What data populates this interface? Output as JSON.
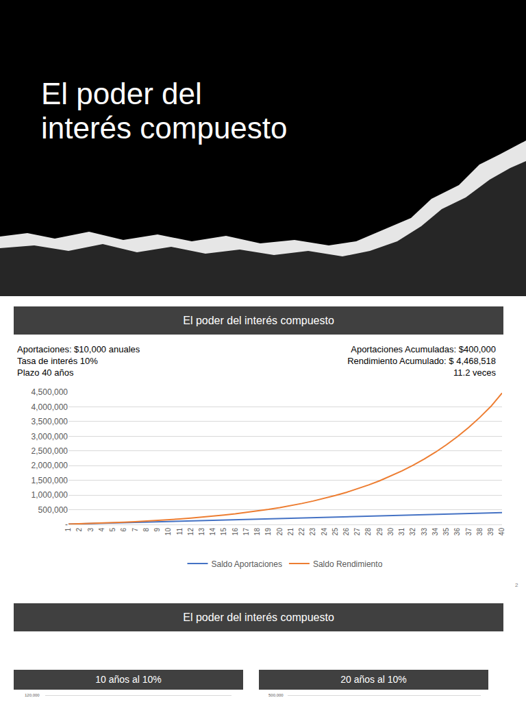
{
  "title_slide": {
    "title": [
      "El poder del",
      "interés compuesto"
    ]
  },
  "slide2": {
    "header": "El poder del interés compuesto",
    "left_text": [
      "Aportaciones: $10,000 anuales",
      "Tasa de interés 10%",
      "Plazo 40 años"
    ],
    "right_text": [
      "Aportaciones Acumuladas: $400,000",
      "Rendimiento Acumulado: $ 4,468,518",
      "11.2 veces"
    ],
    "page_number": "2"
  },
  "chart_data": {
    "type": "line",
    "categories": [
      "1",
      "2",
      "3",
      "4",
      "5",
      "6",
      "7",
      "8",
      "9",
      "10",
      "11",
      "12",
      "13",
      "14",
      "15",
      "16",
      "17",
      "18",
      "19",
      "20",
      "21",
      "22",
      "23",
      "24",
      "25",
      "26",
      "27",
      "28",
      "29",
      "30",
      "31",
      "32",
      "33",
      "34",
      "35",
      "36",
      "37",
      "38",
      "39",
      "40"
    ],
    "series": [
      {
        "name": "Saldo Aportaciones",
        "color": "#4472c4",
        "values": [
          10000,
          20000,
          30000,
          40000,
          50000,
          60000,
          70000,
          80000,
          90000,
          100000,
          110000,
          120000,
          130000,
          140000,
          150000,
          160000,
          170000,
          180000,
          190000,
          200000,
          210000,
          220000,
          230000,
          240000,
          250000,
          260000,
          270000,
          280000,
          290000,
          300000,
          310000,
          320000,
          330000,
          340000,
          350000,
          360000,
          370000,
          380000,
          390000,
          400000
        ]
      },
      {
        "name": "Saldo Rendimiento",
        "color": "#ed7d31",
        "values": [
          10000,
          21000,
          33100,
          46410,
          61051,
          77156,
          94872,
          114359,
          135795,
          159374,
          185312,
          213843,
          245227,
          279750,
          317725,
          359497,
          405447,
          455992,
          511591,
          572750,
          640025,
          714028,
          795430,
          884973,
          983471,
          1091818,
          1210999,
          1343099,
          1486309,
          1644940,
          1819434,
          2011378,
          2222515,
          2454767,
          2710244,
          2991268,
          3300395,
          3640434,
          4014478,
          4468518
        ]
      }
    ],
    "ylim": [
      0,
      4500000
    ],
    "yticks": [
      {
        "value": 0,
        "label": "-"
      },
      {
        "value": 500000,
        "label": "500,000"
      },
      {
        "value": 1000000,
        "label": "1,000,000"
      },
      {
        "value": 1500000,
        "label": "1,500,000"
      },
      {
        "value": 2000000,
        "label": "2,000,000"
      },
      {
        "value": 2500000,
        "label": "2,500,000"
      },
      {
        "value": 3000000,
        "label": "3,000,000"
      },
      {
        "value": 3500000,
        "label": "3,500,000"
      },
      {
        "value": 4000000,
        "label": "4,000,000"
      },
      {
        "value": 4500000,
        "label": "4,500,000"
      }
    ],
    "grid": true,
    "legend": "bottom"
  },
  "slide3": {
    "header": "El poder del interés compuesto",
    "panels": [
      {
        "title": "10 años al 10%",
        "top_tick": "120,000"
      },
      {
        "title": "20 años al 10%",
        "top_tick": "500,000"
      }
    ]
  }
}
